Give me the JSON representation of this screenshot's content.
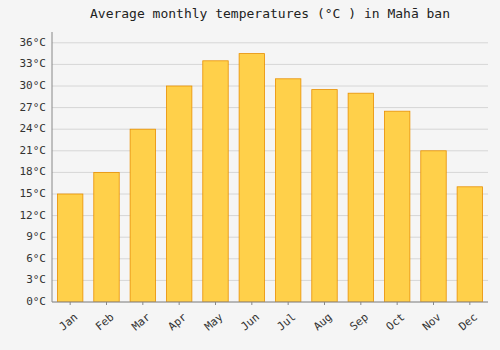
{
  "chart_data": {
    "type": "bar",
    "title": "Average monthly temperatures (°C ) in Mahā ban",
    "categories": [
      "Jan",
      "Feb",
      "Mar",
      "Apr",
      "May",
      "Jun",
      "Jul",
      "Aug",
      "Sep",
      "Oct",
      "Nov",
      "Dec"
    ],
    "values": [
      15,
      18,
      24,
      30,
      33.5,
      34.5,
      31,
      29.5,
      29,
      26.5,
      21,
      16
    ],
    "color": "#FFD04A",
    "ylim": [
      0,
      37.5
    ],
    "yticks": [
      {
        "value": 0,
        "label": "0°C"
      },
      {
        "value": 3,
        "label": "3°C"
      },
      {
        "value": 6,
        "label": "6°C"
      },
      {
        "value": 9,
        "label": "9°C"
      },
      {
        "value": 12,
        "label": "12°C"
      },
      {
        "value": 15,
        "label": "15°C"
      },
      {
        "value": 18,
        "label": "18°C"
      },
      {
        "value": 21,
        "label": "21°C"
      },
      {
        "value": 24,
        "label": "24°C"
      },
      {
        "value": 27,
        "label": "27°C"
      },
      {
        "value": 30,
        "label": "30°C"
      },
      {
        "value": 33,
        "label": "33°C"
      },
      {
        "value": 36,
        "label": "36°C"
      }
    ],
    "grid": true
  }
}
